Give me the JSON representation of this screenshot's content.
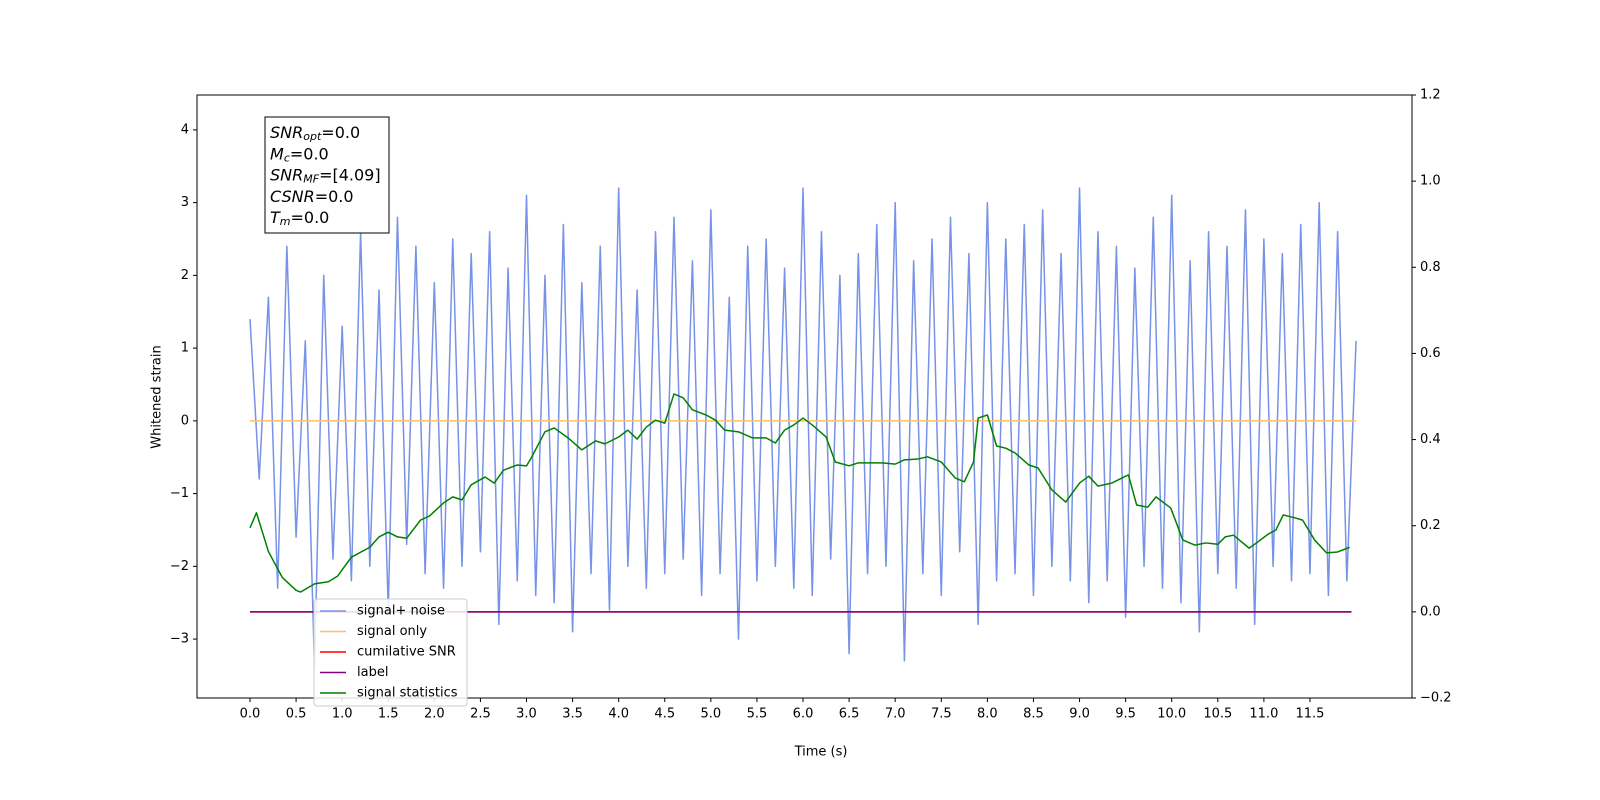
{
  "chart_data": {
    "type": "line",
    "xlabel": "Time (s)",
    "ylabel": "Whitened strain",
    "xlim": [
      -0.575,
      12.607
    ],
    "ylim": [
      -3.81,
      4.48
    ],
    "y2lim": [
      -0.2,
      1.2
    ],
    "xticks": [
      {
        "value": 0,
        "label": "0.0"
      },
      0.5,
      {
        "value": 1,
        "label": "1.0"
      },
      1.5,
      {
        "value": 2,
        "label": "2.0"
      },
      2.5,
      {
        "value": 3,
        "label": "3.0"
      },
      3.5,
      {
        "value": 4,
        "label": "4.0"
      },
      4.5,
      {
        "value": 5,
        "label": "5.0"
      },
      5.5,
      {
        "value": 6,
        "label": "6.0"
      },
      6.5,
      {
        "value": 7,
        "label": "7.0"
      },
      7.5,
      {
        "value": 8,
        "label": "8.0"
      },
      8.5,
      {
        "value": 9,
        "label": "9.0"
      },
      9.5,
      {
        "value": 10,
        "label": "10.0"
      },
      10.5,
      {
        "value": 11,
        "label": "11.0"
      },
      11.5
    ],
    "yticks": [
      {
        "value": -3,
        "label": "−3"
      },
      {
        "value": -2,
        "label": "−2"
      },
      {
        "value": -1,
        "label": "−1"
      },
      0,
      1,
      2,
      3,
      4
    ],
    "y2ticks": [
      {
        "value": -0.2,
        "label": "−0.2"
      },
      {
        "value": 0,
        "label": "0.0"
      },
      0.2,
      0.4,
      0.6,
      0.8,
      {
        "value": 1,
        "label": "1.0"
      },
      1.2
    ],
    "legend_loc": "lower left",
    "annotation": [
      {
        "text": "SNR",
        "sub": "opt",
        "value": "=0.0"
      },
      {
        "text": "M",
        "sub": "c",
        "value": "=0.0"
      },
      {
        "text": "SNR",
        "sub": "MF",
        "value": "=[4.09]"
      },
      {
        "text": "CSNR",
        "value": "=0.0"
      },
      {
        "text": "T",
        "sub": "m",
        "value": "=0.0"
      }
    ],
    "series": [
      {
        "name": "signal+ noise",
        "color": "#7792e6",
        "axis": "y",
        "x": [
          0,
          0.1,
          0.2,
          0.3,
          0.4,
          0.5,
          0.6,
          0.7,
          0.8,
          0.9,
          1,
          1.1,
          1.2,
          1.3,
          1.4,
          1.5,
          1.6,
          1.7,
          1.8,
          1.9,
          2,
          2.1,
          2.2,
          2.3,
          2.4,
          2.5,
          2.6,
          2.7,
          2.8,
          2.9,
          3,
          3.1,
          3.2,
          3.3,
          3.4,
          3.5,
          3.6,
          3.7,
          3.8,
          3.9,
          4,
          4.1,
          4.2,
          4.3,
          4.4,
          4.5,
          4.6,
          4.7,
          4.8,
          4.9,
          5,
          5.1,
          5.2,
          5.3,
          5.4,
          5.5,
          5.6,
          5.7,
          5.8,
          5.9,
          6,
          6.1,
          6.2,
          6.3,
          6.4,
          6.5,
          6.6,
          6.7,
          6.8,
          6.9,
          7,
          7.1,
          7.2,
          7.3,
          7.4,
          7.5,
          7.6,
          7.7,
          7.8,
          7.9,
          8,
          8.1,
          8.2,
          8.3,
          8.4,
          8.5,
          8.6,
          8.7,
          8.8,
          8.9,
          9,
          9.1,
          9.2,
          9.3,
          9.4,
          9.5,
          9.6,
          9.7,
          9.8,
          9.9,
          10,
          10.1,
          10.2,
          10.3,
          10.4,
          10.5,
          10.6,
          10.7,
          10.8,
          10.9,
          11,
          11.1,
          11.2,
          11.3,
          11.4,
          11.5,
          11.6,
          11.7,
          11.8,
          11.9,
          12
        ],
        "values": [
          1.4,
          -0.8,
          1.7,
          -2.3,
          2.4,
          -1.6,
          1.1,
          -3.4,
          2.0,
          -1.9,
          1.3,
          -2.2,
          2.6,
          -2.0,
          1.8,
          -2.6,
          2.8,
          -1.7,
          2.4,
          -2.1,
          1.9,
          -2.3,
          2.5,
          -2.0,
          2.3,
          -1.8,
          2.6,
          -2.8,
          2.1,
          -2.2,
          3.1,
          -2.4,
          2.0,
          -2.5,
          2.7,
          -2.9,
          1.9,
          -2.1,
          2.4,
          -2.6,
          3.2,
          -2.0,
          1.8,
          -2.3,
          2.6,
          -2.1,
          2.8,
          -1.9,
          2.2,
          -2.4,
          2.9,
          -2.1,
          1.7,
          -3.0,
          2.4,
          -2.2,
          2.5,
          -2.0,
          2.1,
          -2.3,
          3.2,
          -2.4,
          2.6,
          -1.9,
          2.0,
          -3.2,
          2.3,
          -2.1,
          2.7,
          -2.0,
          3.0,
          -3.3,
          2.2,
          -2.1,
          2.5,
          -2.4,
          2.8,
          -1.8,
          2.3,
          -2.8,
          3.0,
          -2.2,
          2.5,
          -2.1,
          2.7,
          -2.4,
          2.9,
          -2.0,
          2.3,
          -2.2,
          3.2,
          -2.5,
          2.6,
          -2.2,
          2.4,
          -2.7,
          2.1,
          -2.0,
          2.8,
          -2.3,
          3.1,
          -2.5,
          2.2,
          -2.9,
          2.6,
          -2.1,
          2.4,
          -2.3,
          2.9,
          -2.8,
          2.5,
          -2.0,
          2.3,
          -2.2,
          2.7,
          -2.1,
          3.0,
          -2.4,
          2.6,
          -2.2,
          1.1
        ]
      },
      {
        "name": "signal only",
        "color": "#ffbf60",
        "axis": "y",
        "x": [
          0,
          12
        ],
        "values": [
          0,
          0
        ]
      },
      {
        "name": "cumilative SNR",
        "color": "#ff0000",
        "axis": "y2",
        "x": [
          0,
          11.95
        ],
        "values": [
          0,
          0
        ]
      },
      {
        "name": "label",
        "color": "#800080",
        "axis": "y2",
        "x": [
          0,
          11.95
        ],
        "values": [
          0,
          0
        ]
      },
      {
        "name": "signal statistics",
        "color": "#008000",
        "axis": "y2",
        "x": [
          0,
          0.07,
          0.2,
          0.35,
          0.5,
          0.55,
          0.7,
          0.85,
          0.95,
          1.1,
          1.3,
          1.4,
          1.5,
          1.6,
          1.7,
          1.85,
          1.95,
          2.1,
          2.2,
          2.3,
          2.4,
          2.55,
          2.65,
          2.75,
          2.9,
          3.0,
          3.05,
          3.2,
          3.3,
          3.45,
          3.6,
          3.75,
          3.85,
          4.0,
          4.1,
          4.2,
          4.3,
          4.4,
          4.5,
          4.6,
          4.7,
          4.8,
          4.95,
          5.05,
          5.15,
          5.3,
          5.45,
          5.6,
          5.7,
          5.8,
          5.9,
          6.0,
          6.1,
          6.25,
          6.35,
          6.5,
          6.6,
          6.7,
          6.85,
          7.0,
          7.1,
          7.25,
          7.35,
          7.5,
          7.65,
          7.75,
          7.85,
          7.9,
          8.0,
          8.1,
          8.2,
          8.3,
          8.45,
          8.55,
          8.7,
          8.85,
          9.0,
          9.1,
          9.2,
          9.35,
          9.5,
          9.53,
          9.62,
          9.74,
          9.83,
          9.99,
          10.12,
          10.25,
          10.37,
          10.5,
          10.58,
          10.67,
          10.84,
          10.92,
          11.05,
          11.13,
          11.21,
          11.34,
          11.42,
          11.55,
          11.68,
          11.8,
          11.93
        ],
        "values": [
          0.195,
          0.23,
          0.14,
          0.08,
          0.05,
          0.046,
          0.065,
          0.07,
          0.083,
          0.127,
          0.15,
          0.174,
          0.185,
          0.174,
          0.171,
          0.213,
          0.223,
          0.253,
          0.267,
          0.26,
          0.295,
          0.313,
          0.299,
          0.329,
          0.341,
          0.339,
          0.357,
          0.418,
          0.427,
          0.404,
          0.376,
          0.397,
          0.39,
          0.406,
          0.422,
          0.401,
          0.429,
          0.445,
          0.438,
          0.506,
          0.497,
          0.469,
          0.457,
          0.445,
          0.422,
          0.418,
          0.404,
          0.404,
          0.392,
          0.422,
          0.434,
          0.45,
          0.434,
          0.406,
          0.348,
          0.339,
          0.346,
          0.346,
          0.346,
          0.343,
          0.353,
          0.355,
          0.36,
          0.348,
          0.311,
          0.302,
          0.348,
          0.45,
          0.457,
          0.385,
          0.38,
          0.369,
          0.341,
          0.334,
          0.283,
          0.255,
          0.299,
          0.315,
          0.292,
          0.299,
          0.315,
          0.318,
          0.248,
          0.243,
          0.267,
          0.241,
          0.167,
          0.155,
          0.16,
          0.157,
          0.174,
          0.178,
          0.148,
          0.16,
          0.181,
          0.19,
          0.225,
          0.218,
          0.213,
          0.167,
          0.137,
          0.139,
          0.15
        ]
      }
    ]
  }
}
